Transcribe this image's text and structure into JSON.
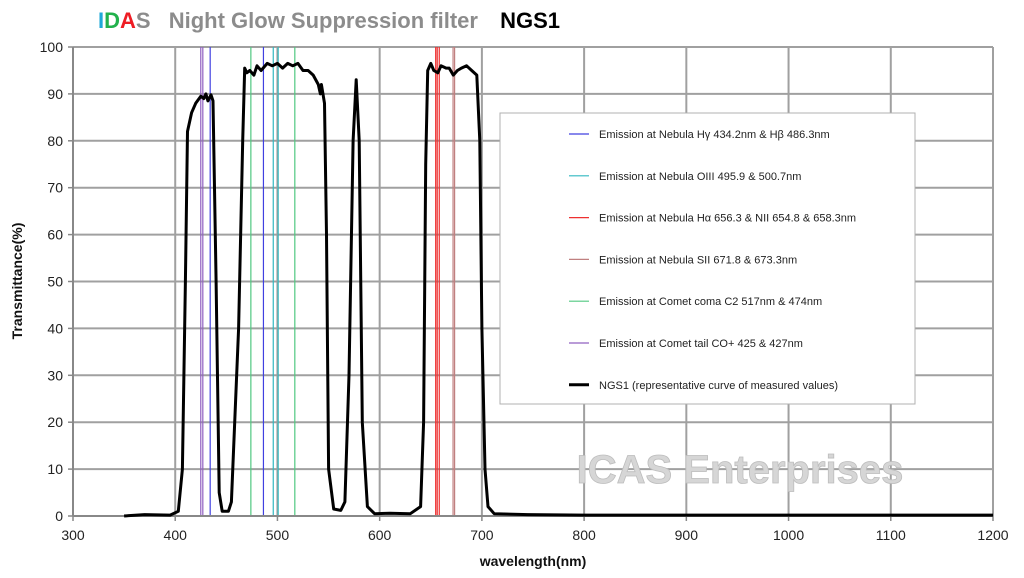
{
  "header": {
    "brand_letters": [
      "I",
      "D",
      "A",
      "S"
    ],
    "title": "Night Glow Suppression filter",
    "model": "NGS1"
  },
  "watermark": "ICAS Enterprises",
  "colors": {
    "brand_i": "#1fa8d8",
    "brand_d": "#22b14c",
    "brand_a": "#ee1c24",
    "brand_s": "#8c8c8c",
    "hydrogen_gamma_beta": "#4040e0",
    "oxygen_iii": "#30b8c0",
    "h_alpha_nii": "#ee3030",
    "sulfur_ii": "#c08080",
    "comet_c2": "#50c880",
    "comet_co_plus": "#9060c0",
    "curve": "#000000",
    "grid": "#a0a0a0"
  },
  "chart_data": {
    "type": "line",
    "title": "IDAS Night Glow Suppression filter NGS1",
    "xlabel": "wavelength(nm)",
    "ylabel": "Transmittance(%)",
    "xlim": [
      300,
      1200
    ],
    "ylim": [
      0,
      100
    ],
    "x_ticks": [
      300,
      400,
      500,
      600,
      700,
      800,
      900,
      1000,
      1100,
      1200
    ],
    "y_ticks": [
      0,
      10,
      20,
      30,
      40,
      50,
      60,
      70,
      80,
      90,
      100
    ],
    "grid": true,
    "legend_position": "inside right",
    "series": [
      {
        "name": "NGS1 (representative curve of measured values)",
        "color": "#000000",
        "points": [
          [
            350,
            0
          ],
          [
            370,
            0.3
          ],
          [
            395,
            0.2
          ],
          [
            403,
            1
          ],
          [
            407,
            10
          ],
          [
            410,
            50
          ],
          [
            412,
            82
          ],
          [
            416,
            86
          ],
          [
            420,
            88
          ],
          [
            425,
            89.5
          ],
          [
            428,
            89
          ],
          [
            430,
            90
          ],
          [
            432,
            88.5
          ],
          [
            435,
            89.8
          ],
          [
            437,
            88.5
          ],
          [
            440,
            50
          ],
          [
            443,
            5
          ],
          [
            446,
            1
          ],
          [
            452,
            1
          ],
          [
            455,
            3
          ],
          [
            462,
            40
          ],
          [
            466,
            80
          ],
          [
            468,
            95.5
          ],
          [
            470,
            94.5
          ],
          [
            473,
            95
          ],
          [
            477,
            94
          ],
          [
            480,
            96
          ],
          [
            484,
            95
          ],
          [
            490,
            96.5
          ],
          [
            495,
            96
          ],
          [
            500,
            96.5
          ],
          [
            505,
            95.5
          ],
          [
            510,
            96.5
          ],
          [
            515,
            96
          ],
          [
            520,
            96.5
          ],
          [
            525,
            95
          ],
          [
            530,
            95
          ],
          [
            535,
            94
          ],
          [
            540,
            92
          ],
          [
            542,
            90
          ],
          [
            543,
            92
          ],
          [
            546,
            88
          ],
          [
            548,
            60
          ],
          [
            550,
            10
          ],
          [
            555,
            1.5
          ],
          [
            562,
            1.2
          ],
          [
            566,
            3
          ],
          [
            570,
            30
          ],
          [
            574,
            80
          ],
          [
            577,
            93
          ],
          [
            580,
            80
          ],
          [
            583,
            20
          ],
          [
            588,
            2
          ],
          [
            595,
            0.5
          ],
          [
            610,
            0.6
          ],
          [
            630,
            0.5
          ],
          [
            640,
            2
          ],
          [
            643,
            20
          ],
          [
            645,
            75
          ],
          [
            647,
            95
          ],
          [
            650,
            96.5
          ],
          [
            653,
            95
          ],
          [
            657,
            94.5
          ],
          [
            660,
            96
          ],
          [
            665,
            95.5
          ],
          [
            668,
            95.5
          ],
          [
            672,
            94
          ],
          [
            676,
            95
          ],
          [
            680,
            95.5
          ],
          [
            685,
            96
          ],
          [
            690,
            95
          ],
          [
            695,
            94
          ],
          [
            698,
            80
          ],
          [
            700,
            40
          ],
          [
            703,
            10
          ],
          [
            706,
            2
          ],
          [
            712,
            0.5
          ],
          [
            745,
            0.3
          ],
          [
            800,
            0.2
          ],
          [
            1200,
            0.2
          ]
        ]
      }
    ],
    "emission_lines": [
      {
        "label": "Emission at Nebula  Hγ 434.2nm  &  Hβ 486.3nm",
        "color": "#4040e0",
        "wavelengths": [
          434.2,
          486.3
        ]
      },
      {
        "label": "Emission at Nebula OIII  495.9 & 500.7nm",
        "color": "#30b8c0",
        "wavelengths": [
          495.9,
          500.7
        ]
      },
      {
        "label": "Emission at Nebula  Hα 656.3 & NII  654.8 & 658.3nm",
        "color": "#ee3030",
        "wavelengths": [
          654.8,
          656.3,
          658.3
        ]
      },
      {
        "label": "Emission at Nebula  SII  671.8 & 673.3nm",
        "color": "#c08080",
        "wavelengths": [
          671.8,
          673.3
        ]
      },
      {
        "label": "Emission at Comet coma C2 517nm & 474nm",
        "color": "#50c880",
        "wavelengths": [
          474,
          517
        ]
      },
      {
        "label": "Emission at Comet tail  CO+ 425 & 427nm",
        "color": "#9060c0",
        "wavelengths": [
          425,
          427
        ]
      }
    ],
    "legend": [
      "Emission at Nebula  Hγ 434.2nm  &  Hβ 486.3nm",
      "Emission at Nebula OIII  495.9 & 500.7nm",
      "Emission at Nebula  Hα 656.3 & NII  654.8 & 658.3nm",
      "Emission at Nebula  SII  671.8 & 673.3nm",
      "Emission at Comet coma C2 517nm & 474nm",
      "Emission at Comet tail  CO+ 425 & 427nm",
      "NGS1   (representative curve of measured values)"
    ]
  }
}
